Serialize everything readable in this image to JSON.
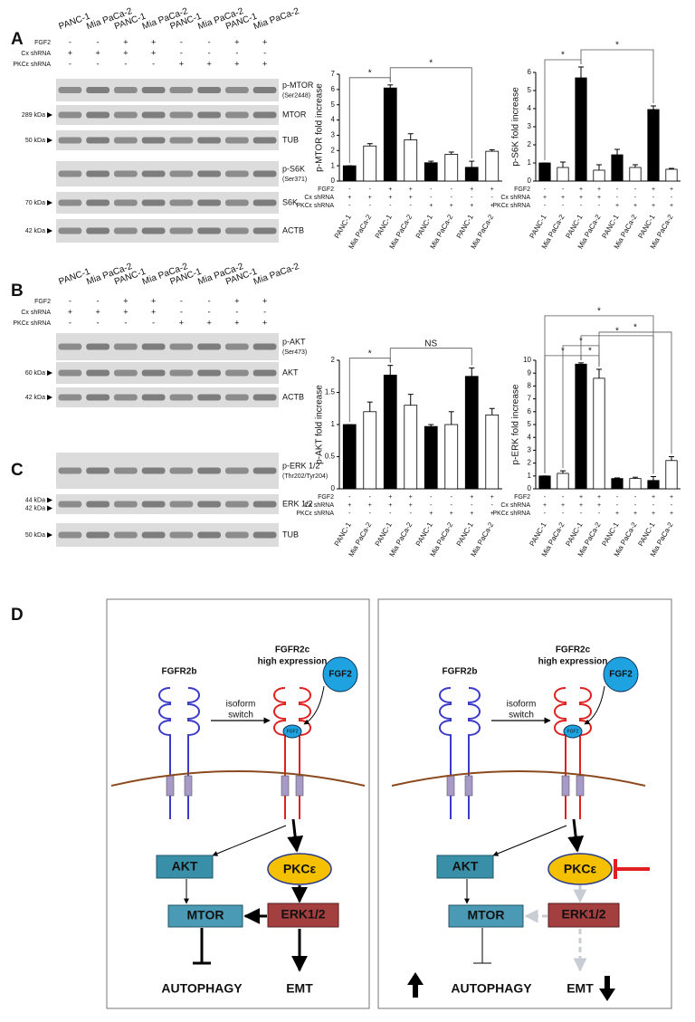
{
  "panels": {
    "a": "A",
    "b": "B",
    "c": "C",
    "d": "D"
  },
  "blots_a": {
    "lanes": [
      "PANC-1",
      "Mia PaCa-2",
      "PANC-1",
      "Mia PaCa-2",
      "PANC-1",
      "Mia PaCa-2",
      "PANC-1",
      "Mia PaCa-2"
    ],
    "conditions": [
      {
        "name": "FGF2",
        "signs": [
          "-",
          "-",
          "+",
          "+",
          "-",
          "-",
          "+",
          "+"
        ]
      },
      {
        "name": "Cx shRNA",
        "signs": [
          "+",
          "+",
          "+",
          "+",
          "-",
          "-",
          "-",
          "-"
        ]
      },
      {
        "name": "PKCε shRNA",
        "signs": [
          "-",
          "-",
          "-",
          "-",
          "+",
          "+",
          "+",
          "+"
        ]
      }
    ],
    "rows": [
      {
        "label": "p-MTOR",
        "sub": "(Ser2448)"
      },
      {
        "label": "MTOR",
        "markers": [
          "289 kDa"
        ]
      },
      {
        "label": "TUB",
        "markers": [
          "50 kDa"
        ]
      },
      {
        "label": "p-S6K",
        "sub": "(Ser371)"
      },
      {
        "label": "S6K",
        "markers": [
          "70 kDa"
        ]
      },
      {
        "label": "ACTB",
        "markers": [
          "42 kDa"
        ]
      }
    ]
  },
  "blots_b": {
    "lanes": [
      "PANC-1",
      "Mia PaCa-2",
      "PANC-1",
      "Mia PaCa-2",
      "PANC-1",
      "Mia PaCa-2",
      "PANC-1",
      "Mia PaCa-2"
    ],
    "conditions": [
      {
        "name": "FGF2",
        "signs": [
          "-",
          "-",
          "+",
          "+",
          "-",
          "-",
          "+",
          "+"
        ]
      },
      {
        "name": "Cx shRNA",
        "signs": [
          "+",
          "+",
          "+",
          "+",
          "-",
          "-",
          "-",
          "-"
        ]
      },
      {
        "name": "PKCε shRNA",
        "signs": [
          "-",
          "-",
          "-",
          "-",
          "+",
          "+",
          "+",
          "+"
        ]
      }
    ],
    "rows": [
      {
        "label": "p-AKT",
        "sub": "(Ser473)"
      },
      {
        "label": "AKT",
        "markers": [
          "60 kDa"
        ]
      },
      {
        "label": "ACTB",
        "markers": [
          "42 kDa"
        ]
      }
    ]
  },
  "blots_c": {
    "rows": [
      {
        "label": "p-ERK 1/2",
        "sub": "(Thr202/Tyr204)"
      },
      {
        "label": "ERK 1/2",
        "markers": [
          "44 kDa",
          "42 kDa"
        ]
      },
      {
        "label": "TUB",
        "markers": [
          "50 kDa"
        ]
      }
    ]
  },
  "chart_data": [
    {
      "type": "bar",
      "title": "p-MTOR fold increase",
      "categories": [
        "PANC-1",
        "Mia PaCa-2",
        "PANC-1",
        "Mia PaCa-2",
        "PANC-1",
        "Mia PaCa-2",
        "PANC-1",
        "Mia PaCa-2"
      ],
      "values": [
        1,
        2.3,
        6.1,
        2.7,
        1.2,
        1.75,
        0.9,
        1.95
      ],
      "errors": [
        0,
        0.15,
        0.2,
        0.4,
        0.1,
        0.15,
        0.4,
        0.1
      ],
      "bar_colors": [
        "#000000",
        "#ffffff",
        "#000000",
        "#ffffff",
        "#000000",
        "#ffffff",
        "#000000",
        "#ffffff"
      ],
      "ylim": [
        0,
        7
      ],
      "yticks": [
        0,
        1,
        2,
        3,
        4,
        5,
        6,
        7
      ],
      "conditions": [
        {
          "name": "FGF2",
          "signs": [
            "-",
            "-",
            "+",
            "+",
            "-",
            "-",
            "+",
            "+"
          ]
        },
        {
          "name": "Cx shRNA",
          "signs": [
            "+",
            "+",
            "+",
            "+",
            "-",
            "-",
            "-",
            "-"
          ]
        },
        {
          "name": "PKCε shRNA",
          "signs": [
            "-",
            "-",
            "-",
            "-",
            "+",
            "+",
            "+",
            "+"
          ]
        }
      ],
      "annotations": [
        "*",
        "*"
      ]
    },
    {
      "type": "bar",
      "title": "p-S6K fold increase",
      "categories": [
        "PANC-1",
        "Mia PaCa-2",
        "PANC-1",
        "Mia PaCa-2",
        "PANC-1",
        "Mia PaCa-2",
        "PANC-1",
        "Mia PaCa-2"
      ],
      "values": [
        1,
        0.75,
        5.7,
        0.6,
        1.45,
        0.75,
        3.95,
        0.65
      ],
      "errors": [
        0,
        0.3,
        0.6,
        0.3,
        0.3,
        0.15,
        0.2,
        0.05
      ],
      "bar_colors": [
        "#000000",
        "#ffffff",
        "#000000",
        "#ffffff",
        "#000000",
        "#ffffff",
        "#000000",
        "#ffffff"
      ],
      "ylim": [
        0,
        6
      ],
      "yticks": [
        0,
        1,
        2,
        3,
        4,
        5,
        6
      ],
      "conditions": [
        {
          "name": "FGF2",
          "signs": [
            "-",
            "-",
            "+",
            "+",
            "-",
            "-",
            "+",
            "+"
          ]
        },
        {
          "name": "Cx shRNA",
          "signs": [
            "+",
            "+",
            "+",
            "+",
            "-",
            "-",
            "-",
            "-"
          ]
        },
        {
          "name": "PKCε shRNA",
          "signs": [
            "-",
            "-",
            "-",
            "-",
            "+",
            "+",
            "+",
            "+"
          ]
        }
      ],
      "annotations": [
        "*",
        "*"
      ]
    },
    {
      "type": "bar",
      "title": "p-AKT fold increase",
      "categories": [
        "PANC-1",
        "Mia PaCa-2",
        "PANC-1",
        "Mia PaCa-2",
        "PANC-1",
        "Mia PaCa-2",
        "PANC-1",
        "Mia PaCa-2"
      ],
      "values": [
        1,
        1.2,
        1.77,
        1.3,
        0.97,
        1.0,
        1.75,
        1.15
      ],
      "errors": [
        0,
        0.15,
        0.15,
        0.17,
        0.03,
        0.2,
        0.13,
        0.1
      ],
      "bar_colors": [
        "#000000",
        "#ffffff",
        "#000000",
        "#ffffff",
        "#000000",
        "#ffffff",
        "#000000",
        "#ffffff"
      ],
      "ylim": [
        0,
        2
      ],
      "yticks": [
        0,
        0.5,
        1,
        1.5,
        2
      ],
      "conditions": [
        {
          "name": "FGF2",
          "signs": [
            "-",
            "-",
            "+",
            "+",
            "-",
            "-",
            "+",
            "+"
          ]
        },
        {
          "name": "Cx shRNA",
          "signs": [
            "+",
            "+",
            "+",
            "+",
            "-",
            "-",
            "-",
            "-"
          ]
        },
        {
          "name": "PKCε shRNA",
          "signs": [
            "-",
            "-",
            "-",
            "-",
            "+",
            "+",
            "+",
            "+"
          ]
        }
      ],
      "annotations": [
        "*",
        "NS"
      ]
    },
    {
      "type": "bar",
      "title": "p-ERK fold increase",
      "categories": [
        "PANC-1",
        "Mia PaCa-2",
        "PANC-1",
        "Mia PaCa-2",
        "PANC-1",
        "Mia PaCa-2",
        "PANC-1",
        "Mia PaCa-2"
      ],
      "values": [
        1,
        1.2,
        9.7,
        8.6,
        0.8,
        0.8,
        0.65,
        2.2
      ],
      "errors": [
        0,
        0.2,
        0.1,
        0.7,
        0.05,
        0.1,
        0.3,
        0.3
      ],
      "bar_colors": [
        "#000000",
        "#ffffff",
        "#000000",
        "#ffffff",
        "#000000",
        "#ffffff",
        "#000000",
        "#ffffff"
      ],
      "ylim": [
        0,
        10
      ],
      "yticks": [
        0,
        1,
        2,
        3,
        4,
        5,
        6,
        7,
        8,
        9,
        10
      ],
      "conditions": [
        {
          "name": "FGF2",
          "signs": [
            "-",
            "-",
            "+",
            "+",
            "-",
            "-",
            "+",
            "+"
          ]
        },
        {
          "name": "Cx shRNA",
          "signs": [
            "+",
            "+",
            "+",
            "+",
            "-",
            "-",
            "-",
            "-"
          ]
        },
        {
          "name": "PKCε shRNA",
          "signs": [
            "-",
            "-",
            "-",
            "-",
            "+",
            "+",
            "+",
            "+"
          ]
        }
      ],
      "annotations": [
        "*",
        "*",
        "*",
        "*",
        "*",
        "*"
      ]
    }
  ],
  "diagram": {
    "left": {
      "fgfr2b": "FGFR2b",
      "fgfr2c": "FGFR2c",
      "expression": "high expression",
      "fgf2": "FGF2",
      "bound": "FGF2",
      "switch": [
        "isoform",
        "switch"
      ],
      "akt": "AKT",
      "pkc": "PKCε",
      "mtor": "MTOR",
      "erk": "ERK1/2",
      "autophagy": "AUTOPHAGY",
      "emt": "EMT"
    },
    "right": {
      "fgfr2b": "FGFR2b",
      "fgfr2c": "FGFR2c",
      "expression": "high expression",
      "fgf2": "FGF2",
      "bound": "FGF2",
      "switch": [
        "isoform",
        "switch"
      ],
      "akt": "AKT",
      "pkc": "PKCε",
      "mtor": "MTOR",
      "erk": "ERK1/2",
      "autophagy": "AUTOPHAGY",
      "emt": "EMT"
    }
  }
}
